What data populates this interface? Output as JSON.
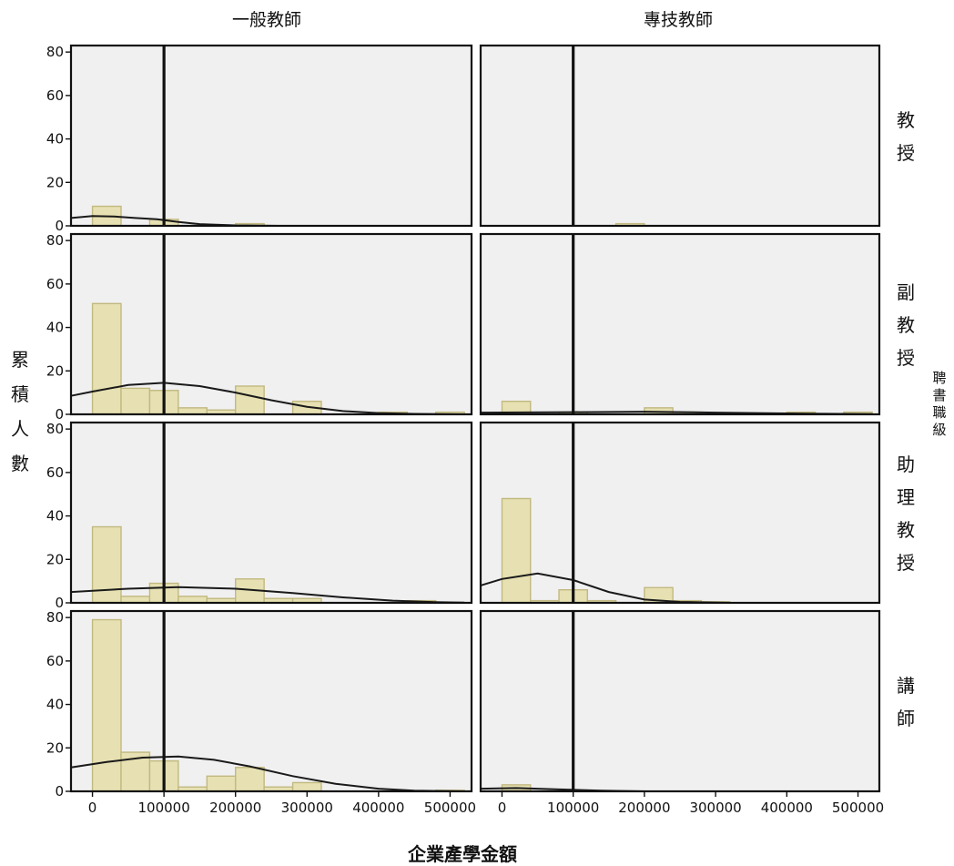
{
  "chart_data": {
    "type": "histogram",
    "xlabel": "企業產學金額",
    "ylabel": "累積人數",
    "row_title": "聘書職級",
    "columns": [
      "一般教師",
      "專技教師"
    ],
    "rows": [
      "教授",
      "副教授",
      "助理教授",
      "講師"
    ],
    "xlim": [
      -30000,
      530000
    ],
    "ylim": [
      0,
      83
    ],
    "x_ticks": [
      0,
      100000,
      200000,
      300000,
      400000,
      500000
    ],
    "x_tick_labels": [
      "0",
      "100000",
      "200000",
      "300000",
      "400000",
      "500000"
    ],
    "y_ticks": [
      0,
      20,
      40,
      60,
      80
    ],
    "y_tick_labels": [
      "0",
      "20",
      "40",
      "60",
      "80"
    ],
    "reference_line_x": 100000,
    "bin_width": 40000,
    "panels": [
      {
        "row": "教授",
        "column": "一般教師",
        "bins": [
          [
            0,
            40000,
            9
          ],
          [
            80000,
            120000,
            3
          ],
          [
            200000,
            240000,
            1
          ]
        ],
        "curve": [
          [
            -30000,
            3.6
          ],
          [
            0,
            4.5
          ],
          [
            30000,
            4.3
          ],
          [
            60000,
            3.6
          ],
          [
            90000,
            3.0
          ],
          [
            120000,
            1.8
          ],
          [
            150000,
            0.8
          ],
          [
            200000,
            0.2
          ],
          [
            260000,
            0
          ]
        ]
      },
      {
        "row": "教授",
        "column": "專技教師",
        "bins": [
          [
            160000,
            200000,
            1
          ]
        ],
        "curve": []
      },
      {
        "row": "副教授",
        "column": "一般教師",
        "bins": [
          [
            0,
            40000,
            51
          ],
          [
            40000,
            80000,
            12
          ],
          [
            80000,
            120000,
            11
          ],
          [
            120000,
            160000,
            3
          ],
          [
            160000,
            200000,
            2
          ],
          [
            200000,
            240000,
            13
          ],
          [
            240000,
            280000,
            0
          ],
          [
            280000,
            320000,
            6
          ],
          [
            400000,
            440000,
            1
          ],
          [
            480000,
            520000,
            1
          ]
        ],
        "curve": [
          [
            -30000,
            8.5
          ],
          [
            0,
            10.5
          ],
          [
            50000,
            13.5
          ],
          [
            100000,
            14.5
          ],
          [
            150000,
            13
          ],
          [
            200000,
            10
          ],
          [
            250000,
            6.5
          ],
          [
            300000,
            3.5
          ],
          [
            350000,
            1.5
          ],
          [
            400000,
            0.6
          ],
          [
            450000,
            0.2
          ],
          [
            520000,
            0
          ]
        ]
      },
      {
        "row": "副教授",
        "column": "專技教師",
        "bins": [
          [
            0,
            40000,
            6
          ],
          [
            80000,
            120000,
            1
          ],
          [
            200000,
            240000,
            3
          ],
          [
            240000,
            280000,
            1
          ],
          [
            400000,
            440000,
            1
          ],
          [
            480000,
            520000,
            1
          ]
        ],
        "curve": [
          [
            -30000,
            0.8
          ],
          [
            100000,
            1
          ],
          [
            200000,
            1.2
          ],
          [
            300000,
            0.8
          ],
          [
            400000,
            0.4
          ],
          [
            520000,
            0.1
          ]
        ]
      },
      {
        "row": "助理教授",
        "column": "一般教師",
        "bins": [
          [
            0,
            40000,
            35
          ],
          [
            40000,
            80000,
            3
          ],
          [
            80000,
            120000,
            9
          ],
          [
            120000,
            160000,
            3
          ],
          [
            160000,
            200000,
            2
          ],
          [
            200000,
            240000,
            11
          ],
          [
            240000,
            280000,
            2
          ],
          [
            280000,
            320000,
            2
          ],
          [
            440000,
            480000,
            1
          ]
        ],
        "curve": [
          [
            -30000,
            5
          ],
          [
            50000,
            6.5
          ],
          [
            120000,
            7.2
          ],
          [
            200000,
            6.5
          ],
          [
            280000,
            4.5
          ],
          [
            350000,
            2.5
          ],
          [
            420000,
            1
          ],
          [
            480000,
            0.3
          ],
          [
            520000,
            0.1
          ]
        ]
      },
      {
        "row": "助理教授",
        "column": "專技教師",
        "bins": [
          [
            0,
            40000,
            48
          ],
          [
            40000,
            80000,
            1
          ],
          [
            80000,
            120000,
            6
          ],
          [
            120000,
            160000,
            1
          ],
          [
            200000,
            240000,
            7
          ],
          [
            240000,
            280000,
            1
          ],
          [
            280000,
            320000,
            0.5
          ]
        ],
        "curve": [
          [
            -30000,
            8
          ],
          [
            0,
            11
          ],
          [
            50000,
            13.5
          ],
          [
            100000,
            10.5
          ],
          [
            150000,
            5
          ],
          [
            200000,
            1.5
          ],
          [
            250000,
            0.4
          ],
          [
            320000,
            0
          ]
        ]
      },
      {
        "row": "講師",
        "column": "一般教師",
        "bins": [
          [
            0,
            40000,
            79
          ],
          [
            40000,
            80000,
            18
          ],
          [
            80000,
            120000,
            14
          ],
          [
            120000,
            160000,
            2
          ],
          [
            160000,
            200000,
            7
          ],
          [
            200000,
            240000,
            11
          ],
          [
            240000,
            280000,
            2
          ],
          [
            280000,
            320000,
            4
          ],
          [
            480000,
            520000,
            0.5
          ]
        ],
        "curve": [
          [
            -30000,
            11
          ],
          [
            20000,
            13.5
          ],
          [
            70000,
            15.5
          ],
          [
            120000,
            16
          ],
          [
            170000,
            14.5
          ],
          [
            220000,
            11.5
          ],
          [
            280000,
            7
          ],
          [
            340000,
            3.5
          ],
          [
            400000,
            1.2
          ],
          [
            450000,
            0.3
          ],
          [
            520000,
            0
          ]
        ]
      },
      {
        "row": "講師",
        "column": "專技教師",
        "bins": [
          [
            0,
            40000,
            3
          ],
          [
            80000,
            120000,
            0.5
          ]
        ],
        "curve": [
          [
            -30000,
            1.2
          ],
          [
            20000,
            1.5
          ],
          [
            80000,
            0.9
          ],
          [
            140000,
            0.3
          ],
          [
            200000,
            0
          ]
        ]
      }
    ]
  }
}
